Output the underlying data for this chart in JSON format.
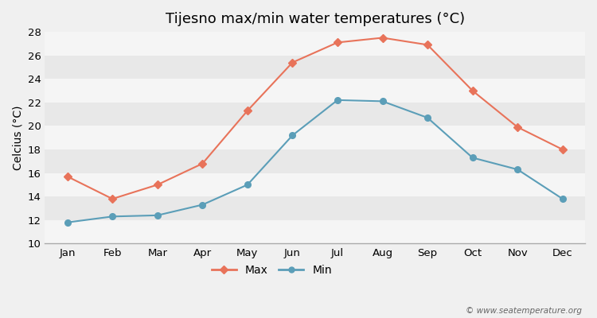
{
  "title": "Tijesno max/min water temperatures (°C)",
  "ylabel": "Celcius (°C)",
  "months": [
    "Jan",
    "Feb",
    "Mar",
    "Apr",
    "May",
    "Jun",
    "Jul",
    "Aug",
    "Sep",
    "Oct",
    "Nov",
    "Dec"
  ],
  "max_temps": [
    15.7,
    13.8,
    15.0,
    16.8,
    21.3,
    25.4,
    27.1,
    27.5,
    26.9,
    23.0,
    19.9,
    18.0
  ],
  "min_temps": [
    11.8,
    12.3,
    12.4,
    13.3,
    15.0,
    19.2,
    22.2,
    22.1,
    20.7,
    17.3,
    16.3,
    13.8
  ],
  "max_color": "#e8735a",
  "min_color": "#5b9eb8",
  "bg_color": "#f0f0f0",
  "band_light": "#f5f5f5",
  "band_dark": "#e8e8e8",
  "ylim": [
    10,
    28
  ],
  "yticks": [
    10,
    12,
    14,
    16,
    18,
    20,
    22,
    24,
    26,
    28
  ],
  "legend_labels": [
    "Max",
    "Min"
  ],
  "watermark": "© www.seatemperature.org",
  "title_fontsize": 13,
  "axis_label_fontsize": 10,
  "tick_fontsize": 9.5
}
